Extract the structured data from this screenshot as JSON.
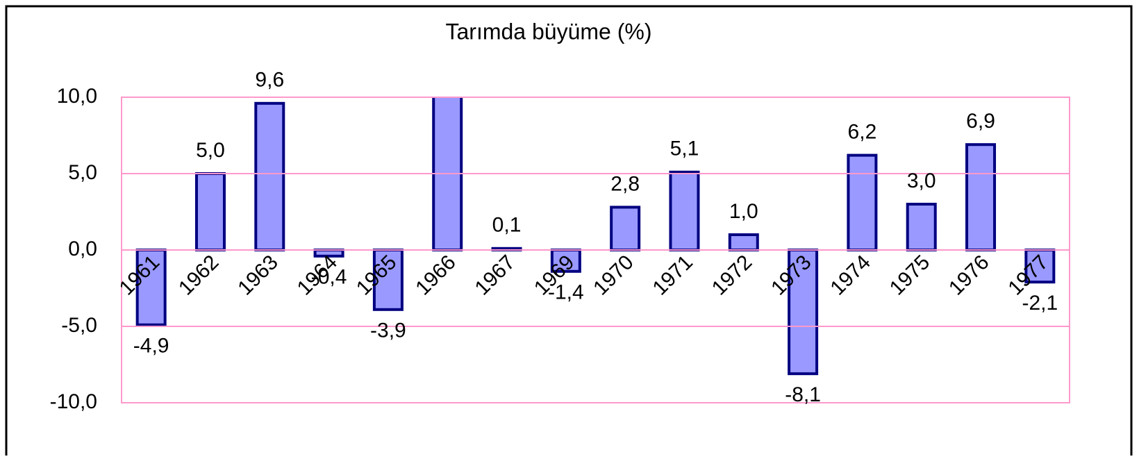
{
  "chart_data": {
    "type": "bar",
    "title": "Tarımda büyüme (%)",
    "categories": [
      "1961",
      "1962",
      "1963",
      "1964",
      "1965",
      "1966",
      "1967",
      "1969",
      "1970",
      "1971",
      "1972",
      "1973",
      "1974",
      "1975",
      "1976",
      "1977"
    ],
    "values": [
      -4.9,
      5.0,
      9.6,
      -0.4,
      -3.9,
      10.5,
      0.1,
      -1.4,
      2.8,
      5.1,
      1.0,
      -8.1,
      6.2,
      3.0,
      6.9,
      -2.1
    ],
    "value_labels": [
      "-4,9",
      "5,0",
      "9,6",
      "-0,4",
      "-3,9",
      null,
      "0,1",
      "-1,4",
      "2,8",
      "5,1",
      "1,0",
      "-8,1",
      "6,2",
      "3,0",
      "6,9",
      "-2,1"
    ],
    "color": "#9999ff",
    "ylim": [
      -10,
      10
    ],
    "yticks": [
      {
        "value": -10,
        "label": "-10,0"
      },
      {
        "value": -5,
        "label": "-5,0"
      },
      {
        "value": 0,
        "label": "0,0"
      },
      {
        "value": 5,
        "label": "5,0"
      },
      {
        "value": 10,
        "label": "10,0"
      }
    ],
    "grid": true
  }
}
